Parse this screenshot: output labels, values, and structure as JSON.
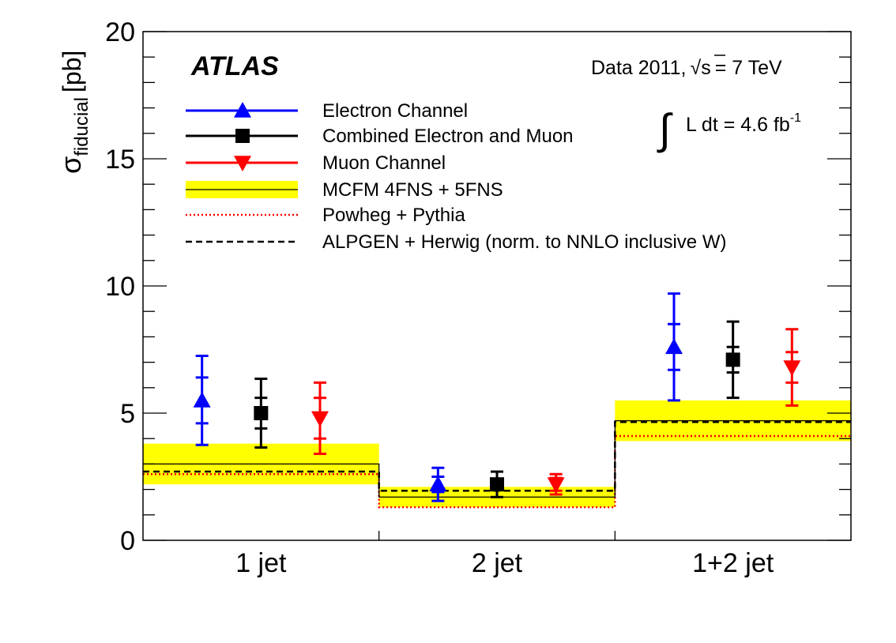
{
  "chart_data": {
    "type": "scatter",
    "title": "ATLAS",
    "ylabel_main": "σ",
    "ylabel_sub": "fiducial",
    "ylabel_unit": "[pb]",
    "ylim": [
      0,
      20
    ],
    "yticks": [
      "0",
      "5",
      "10",
      "15",
      "20"
    ],
    "categories": [
      "1 jet",
      "2 jet",
      "1+2 jet"
    ],
    "annotations": {
      "data_prefix": "Data 2011,",
      "sqrt_symbol": "√",
      "sqrt_arg": "s",
      "energy": "= 7 TeV",
      "integral_symbol": "∫",
      "lumi_text": "L dt = 4.6 fb",
      "lumi_exp": "-1"
    },
    "legend": {
      "placement": "top-left",
      "entries": [
        "Electron Channel",
        "Combined Electron and Muon",
        "Muon Channel",
        "MCFM 4FNS + 5FNS",
        "Powheg + Pythia",
        "ALPGEN + Herwig (norm. to NNLO inclusive W)"
      ]
    },
    "colors": {
      "electron": "#0000ff",
      "combined": "#000000",
      "muon": "#ff0000",
      "band": "#ffff00",
      "powheg": "#ff0000",
      "alpgen": "#000000"
    },
    "series": [
      {
        "name": "Electron Channel",
        "marker": "triangle-up",
        "values": [
          5.5,
          2.2,
          7.6
        ],
        "err_stat": [
          0.9,
          0.3,
          0.9
        ],
        "err_total": [
          1.75,
          0.65,
          2.1
        ]
      },
      {
        "name": "Combined Electron and Muon",
        "marker": "square",
        "values": [
          5.0,
          2.2,
          7.1
        ],
        "err_stat": [
          0.6,
          0.2,
          0.5
        ],
        "err_total": [
          1.35,
          0.5,
          1.5
        ]
      },
      {
        "name": "Muon Channel",
        "marker": "triangle-down",
        "values": [
          4.8,
          2.2,
          6.8
        ],
        "err_stat": [
          0.8,
          0.25,
          0.6
        ],
        "err_total": [
          1.4,
          0.4,
          1.5
        ]
      }
    ],
    "theory": {
      "mcfm": {
        "name": "MCFM 4FNS + 5FNS",
        "values": [
          3.0,
          1.7,
          4.7
        ],
        "band_low": [
          2.2,
          1.3,
          3.9
        ],
        "band_high": [
          3.8,
          2.1,
          5.5
        ]
      },
      "powheg": {
        "name": "Powheg + Pythia",
        "values": [
          2.6,
          1.3,
          4.1
        ]
      },
      "alpgen": {
        "name": "ALPGEN + Herwig (norm. to NNLO inclusive W)",
        "values": [
          2.7,
          1.95,
          4.65
        ]
      }
    }
  }
}
